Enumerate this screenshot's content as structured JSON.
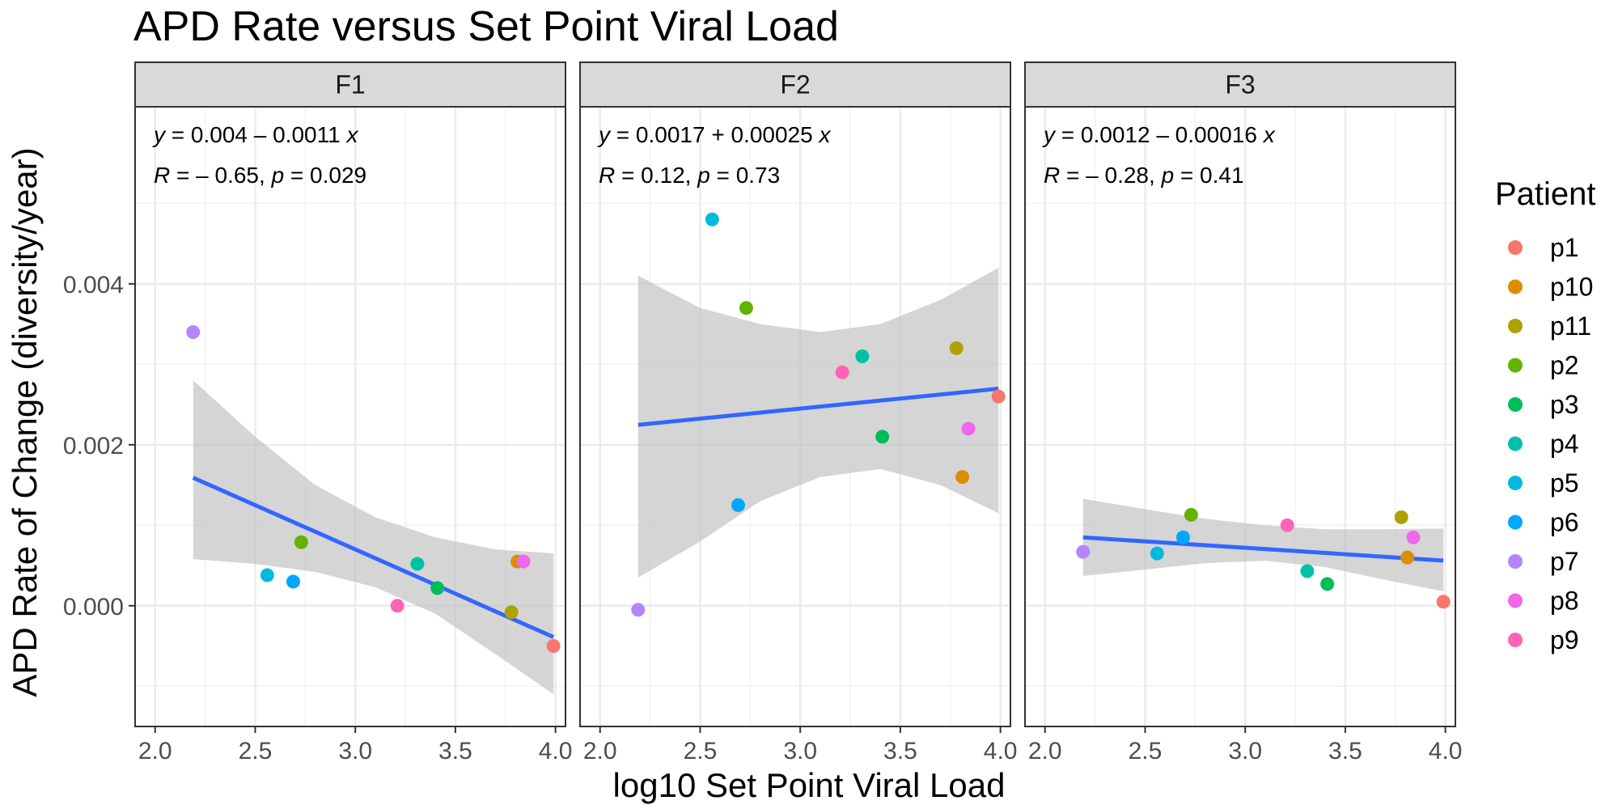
{
  "chart_data": {
    "type": "scatter",
    "title": "APD Rate versus Set Point Viral Load",
    "xlabel": "log10 Set Point Viral Load",
    "ylabel": "APD Rate of Change (diversity/year)",
    "xlim": [
      1.9,
      4.05
    ],
    "ylim": [
      -0.0015,
      0.0062
    ],
    "x_ticks": [
      2.0,
      2.5,
      3.0,
      3.5,
      4.0
    ],
    "x_tick_labels": [
      "2.0",
      "2.5",
      "3.0",
      "3.5",
      "4.0"
    ],
    "y_ticks": [
      0.0,
      0.002,
      0.004
    ],
    "y_tick_labels": [
      "0.000",
      "0.002",
      "0.004"
    ],
    "grid": true,
    "legend": {
      "title": "Patient",
      "placement": "right",
      "entries": [
        {
          "name": "p1",
          "color": "#F8766D"
        },
        {
          "name": "p10",
          "color": "#DB8E00"
        },
        {
          "name": "p11",
          "color": "#AEA200"
        },
        {
          "name": "p2",
          "color": "#64B200"
        },
        {
          "name": "p3",
          "color": "#00BD5C"
        },
        {
          "name": "p4",
          "color": "#00C1A7"
        },
        {
          "name": "p5",
          "color": "#00BADE"
        },
        {
          "name": "p6",
          "color": "#00A6FF"
        },
        {
          "name": "p7",
          "color": "#B385FF"
        },
        {
          "name": "p8",
          "color": "#EF67EB"
        },
        {
          "name": "p9",
          "color": "#FF63B6"
        }
      ]
    },
    "panel_bg": "#FFFFFF",
    "strip_bg": "#D9D9D9",
    "fit_color": "#3366FF",
    "ribbon_color": "#BEBEBE",
    "panels": [
      {
        "label": "F1",
        "equation": {
          "y_sym": "y",
          "rest": " = 0.004 – 0.0011 ",
          "x_sym": "x"
        },
        "stats": {
          "r_sym": "R",
          "r_rest": " = – 0.65, ",
          "p_sym": "p",
          "p_rest": " = 0.029"
        },
        "fit": {
          "intercept": 0.004,
          "slope": -0.0011,
          "x_range": [
            2.19,
            3.99
          ]
        },
        "ribbon": {
          "x": [
            2.19,
            2.5,
            2.8,
            3.1,
            3.4,
            3.7,
            3.99
          ],
          "upper": [
            0.0028,
            0.0021,
            0.0015,
            0.0011,
            0.00085,
            0.0007,
            0.00065
          ],
          "lower": [
            0.00058,
            0.00052,
            0.00042,
            0.00023,
            -0.0001,
            -0.0006,
            -0.0011
          ]
        },
        "points": [
          {
            "patient": "p7",
            "x": 2.19,
            "y": 0.0034
          },
          {
            "patient": "p5",
            "x": 2.56,
            "y": 0.00038
          },
          {
            "patient": "p6",
            "x": 2.69,
            "y": 0.0003
          },
          {
            "patient": "p2",
            "x": 2.73,
            "y": 0.00079
          },
          {
            "patient": "p9",
            "x": 3.21,
            "y": 0.0
          },
          {
            "patient": "p4",
            "x": 3.31,
            "y": 0.00052
          },
          {
            "patient": "p3",
            "x": 3.41,
            "y": 0.00022
          },
          {
            "patient": "p11",
            "x": 3.78,
            "y": -8e-05
          },
          {
            "patient": "p10",
            "x": 3.81,
            "y": 0.00055
          },
          {
            "patient": "p8",
            "x": 3.84,
            "y": 0.00055
          },
          {
            "patient": "p1",
            "x": 3.99,
            "y": -0.0005
          }
        ]
      },
      {
        "label": "F2",
        "equation": {
          "y_sym": "y",
          "rest": " = 0.0017 + 0.00025 ",
          "x_sym": "x"
        },
        "stats": {
          "r_sym": "R",
          "r_rest": " = 0.12, ",
          "p_sym": "p",
          "p_rest": " = 0.73"
        },
        "fit": {
          "intercept": 0.0017,
          "slope": 0.00025,
          "x_range": [
            2.19,
            3.99
          ]
        },
        "ribbon": {
          "x": [
            2.19,
            2.5,
            2.8,
            3.1,
            3.4,
            3.7,
            3.99
          ],
          "upper": [
            0.0041,
            0.0037,
            0.0035,
            0.0034,
            0.0035,
            0.0038,
            0.0042
          ],
          "lower": [
            0.00035,
            0.0008,
            0.0013,
            0.0016,
            0.0017,
            0.0015,
            0.00115
          ]
        },
        "points": [
          {
            "patient": "p7",
            "x": 2.19,
            "y": -5e-05
          },
          {
            "patient": "p5",
            "x": 2.56,
            "y": 0.0048
          },
          {
            "patient": "p6",
            "x": 2.69,
            "y": 0.00125
          },
          {
            "patient": "p2",
            "x": 2.73,
            "y": 0.0037
          },
          {
            "patient": "p9",
            "x": 3.21,
            "y": 0.0029
          },
          {
            "patient": "p4",
            "x": 3.31,
            "y": 0.0031
          },
          {
            "patient": "p3",
            "x": 3.41,
            "y": 0.0021
          },
          {
            "patient": "p11",
            "x": 3.78,
            "y": 0.0032
          },
          {
            "patient": "p10",
            "x": 3.81,
            "y": 0.0016
          },
          {
            "patient": "p8",
            "x": 3.84,
            "y": 0.0022
          },
          {
            "patient": "p1",
            "x": 3.99,
            "y": 0.0026
          }
        ]
      },
      {
        "label": "F3",
        "equation": {
          "y_sym": "y",
          "rest": " = 0.0012 – 0.00016 ",
          "x_sym": "x"
        },
        "stats": {
          "r_sym": "R",
          "r_rest": " = – 0.28, ",
          "p_sym": "p",
          "p_rest": " = 0.41"
        },
        "fit": {
          "intercept": 0.0012,
          "slope": -0.00016,
          "x_range": [
            2.19,
            3.99
          ]
        },
        "ribbon": {
          "x": [
            2.19,
            2.5,
            2.8,
            3.1,
            3.4,
            3.7,
            3.99
          ],
          "upper": [
            0.00133,
            0.0012,
            0.00108,
            0.001,
            0.00095,
            0.00095,
            0.00096
          ],
          "lower": [
            0.00037,
            0.00045,
            0.00053,
            0.00056,
            0.00048,
            0.00032,
            0.00018
          ]
        },
        "points": [
          {
            "patient": "p7",
            "x": 2.19,
            "y": 0.00067
          },
          {
            "patient": "p5",
            "x": 2.56,
            "y": 0.00065
          },
          {
            "patient": "p6",
            "x": 2.69,
            "y": 0.00085
          },
          {
            "patient": "p2",
            "x": 2.73,
            "y": 0.00113
          },
          {
            "patient": "p9",
            "x": 3.21,
            "y": 0.001
          },
          {
            "patient": "p4",
            "x": 3.31,
            "y": 0.00043
          },
          {
            "patient": "p3",
            "x": 3.41,
            "y": 0.00027
          },
          {
            "patient": "p11",
            "x": 3.78,
            "y": 0.0011
          },
          {
            "patient": "p10",
            "x": 3.81,
            "y": 0.0006
          },
          {
            "patient": "p8",
            "x": 3.84,
            "y": 0.00085
          },
          {
            "patient": "p1",
            "x": 3.99,
            "y": 5e-05
          }
        ]
      }
    ]
  }
}
